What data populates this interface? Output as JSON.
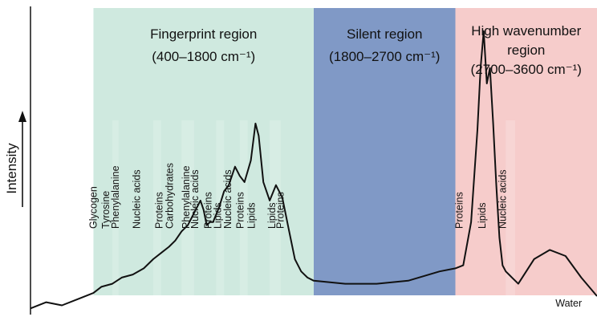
{
  "chart_data": {
    "type": "line",
    "title": "",
    "xlabel": "",
    "ylabel": "Intensity",
    "xlim": [
      0,
      3600
    ],
    "ylim": [
      0,
      1
    ],
    "grid": false,
    "regions": [
      {
        "name": "fingerprint",
        "label_lines": [
          "Fingerprint region",
          "(400–1800 cm⁻¹)"
        ],
        "x_start": 400,
        "x_end": 1800,
        "color": "#cfe9df"
      },
      {
        "name": "silent",
        "label_lines": [
          "Silent region",
          "(1800–2700 cm⁻¹)"
        ],
        "x_start": 1800,
        "x_end": 2700,
        "color": "#8099c6"
      },
      {
        "name": "high-wavenumber",
        "label_lines": [
          "High wavenumber",
          "region",
          "(2700–3600 cm⁻¹)"
        ],
        "x_start": 2700,
        "x_end": 3600,
        "color": "#f6cccb"
      }
    ],
    "band_labels": [
      {
        "text": "Glycogen",
        "x": 420
      },
      {
        "text": "Tyrosine",
        "x": 500
      },
      {
        "text": "Phenylalanine",
        "x": 560
      },
      {
        "text": "Nucleic acids",
        "x": 695
      },
      {
        "text": "Proteins",
        "x": 840
      },
      {
        "text": "Carbohydrates",
        "x": 905
      },
      {
        "text": "Phenylalanine",
        "x": 1010
      },
      {
        "text": "Nucleic acids",
        "x": 1065
      },
      {
        "text": "Proteins",
        "x": 1150
      },
      {
        "text": "Lipids",
        "x": 1210
      },
      {
        "text": "Nucleic acids",
        "x": 1275
      },
      {
        "text": "Proteins",
        "x": 1355
      },
      {
        "text": "Lipids",
        "x": 1425
      },
      {
        "text": "Lipids",
        "x": 1555
      },
      {
        "text": "Proteins",
        "x": 1610
      },
      {
        "text": "Proteins",
        "x": 2745
      },
      {
        "text": "Lipids",
        "x": 2890
      },
      {
        "text": "Nucleic acids",
        "x": 3020
      },
      {
        "text": "Water",
        "x": 3420
      }
    ],
    "series": [
      {
        "x": [
          0,
          100,
          200,
          300,
          400,
          450,
          520,
          580,
          650,
          720,
          780,
          830,
          880,
          920,
          960,
          1000,
          1020,
          1050,
          1080,
          1100,
          1120,
          1140,
          1160,
          1200,
          1230,
          1260,
          1300,
          1330,
          1360,
          1400,
          1430,
          1450,
          1480,
          1520,
          1560,
          1600,
          1640,
          1680,
          1720,
          1760,
          1800,
          2000,
          2200,
          2400,
          2600,
          2700,
          2750,
          2800,
          2840,
          2860,
          2880,
          2900,
          2920,
          2940,
          2960,
          2980,
          3000,
          3020,
          3060,
          3100,
          3200,
          3300,
          3400,
          3500,
          3600
        ],
        "y": [
          0.02,
          0.04,
          0.03,
          0.05,
          0.07,
          0.09,
          0.1,
          0.12,
          0.13,
          0.15,
          0.18,
          0.2,
          0.22,
          0.24,
          0.27,
          0.29,
          0.31,
          0.34,
          0.37,
          0.34,
          0.29,
          0.3,
          0.3,
          0.35,
          0.4,
          0.42,
          0.48,
          0.45,
          0.43,
          0.5,
          0.62,
          0.58,
          0.43,
          0.37,
          0.42,
          0.38,
          0.28,
          0.18,
          0.14,
          0.12,
          0.11,
          0.1,
          0.1,
          0.11,
          0.14,
          0.15,
          0.16,
          0.3,
          0.6,
          0.8,
          0.92,
          0.75,
          0.8,
          0.62,
          0.42,
          0.25,
          0.16,
          0.14,
          0.12,
          0.1,
          0.18,
          0.21,
          0.19,
          0.12,
          0.06
        ]
      }
    ]
  }
}
